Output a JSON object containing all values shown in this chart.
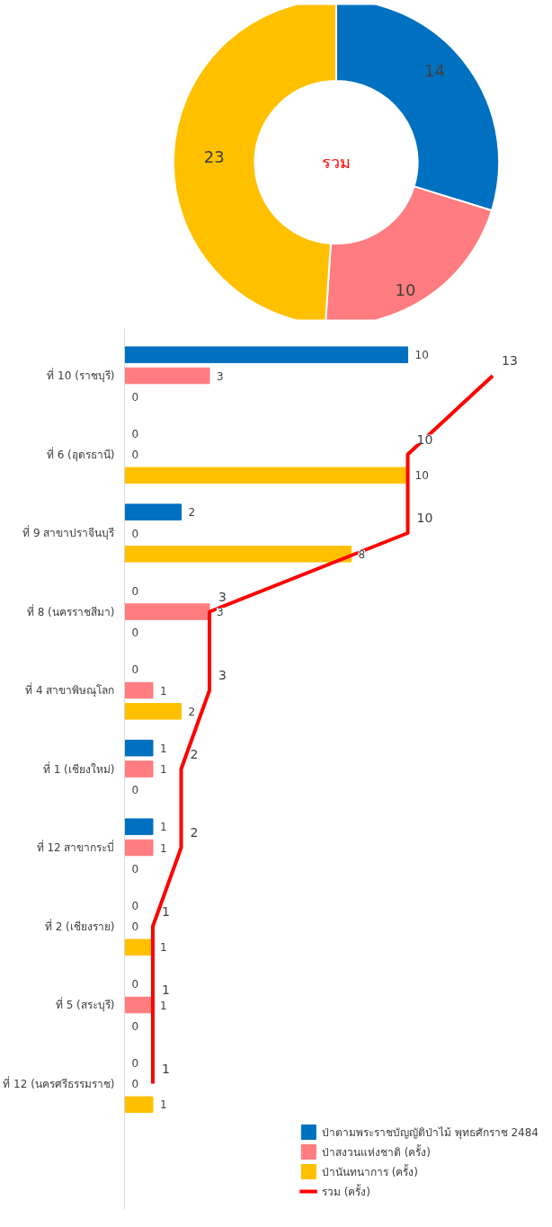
{
  "chart_data": [
    {
      "type": "donut",
      "title": "รวม",
      "categories": [
        null,
        null,
        null
      ],
      "values": [
        14,
        10,
        23
      ],
      "colors": [
        "#0070c0",
        "#ff7c80",
        "#ffc000"
      ],
      "data_labels": true
    },
    {
      "type": "bar",
      "orientation": "horizontal",
      "categories": [
        "ที่ 10 (ราชบุรี)",
        "ที่ 6 (อุดรธานี)",
        "ที่ 9 สาขาปราจีนบุรี",
        "ที่ 8 (นครราชสีมา)",
        "ที่ 4 สาขาพิษณุโลก",
        "ที่ 1 (เชียงใหม่)",
        "ที่ 12 สาขากระบี่",
        "ที่ 2 (เชียงราย)",
        "ที่ 5 (สระบุรี)",
        "ที่ 12 (นครศรีธรรมราช)"
      ],
      "series": [
        {
          "name": "ป่าตามพระราชบัญญัติป่าไม้ พุทธศักราช 2484",
          "color": "#0070c0",
          "values": [
            10,
            0,
            2,
            0,
            0,
            1,
            1,
            0,
            0,
            0
          ]
        },
        {
          "name": "ป่าสงวนแห่งชาติ (ครั้ง)",
          "color": "#ff7c80",
          "values": [
            3,
            0,
            0,
            3,
            1,
            1,
            1,
            0,
            1,
            0
          ]
        },
        {
          "name": "ป่านันทนาการ (ครั้ง)",
          "color": "#ffc000",
          "values": [
            0,
            10,
            8,
            0,
            2,
            0,
            0,
            1,
            0,
            1
          ]
        },
        {
          "name": "รวม (ครั้ง)",
          "type": "line",
          "color": "#ff0000",
          "values": [
            13,
            10,
            10,
            3,
            3,
            2,
            2,
            1,
            1,
            1
          ]
        }
      ],
      "data_labels": true,
      "legend": "bottom",
      "grid": false
    }
  ]
}
